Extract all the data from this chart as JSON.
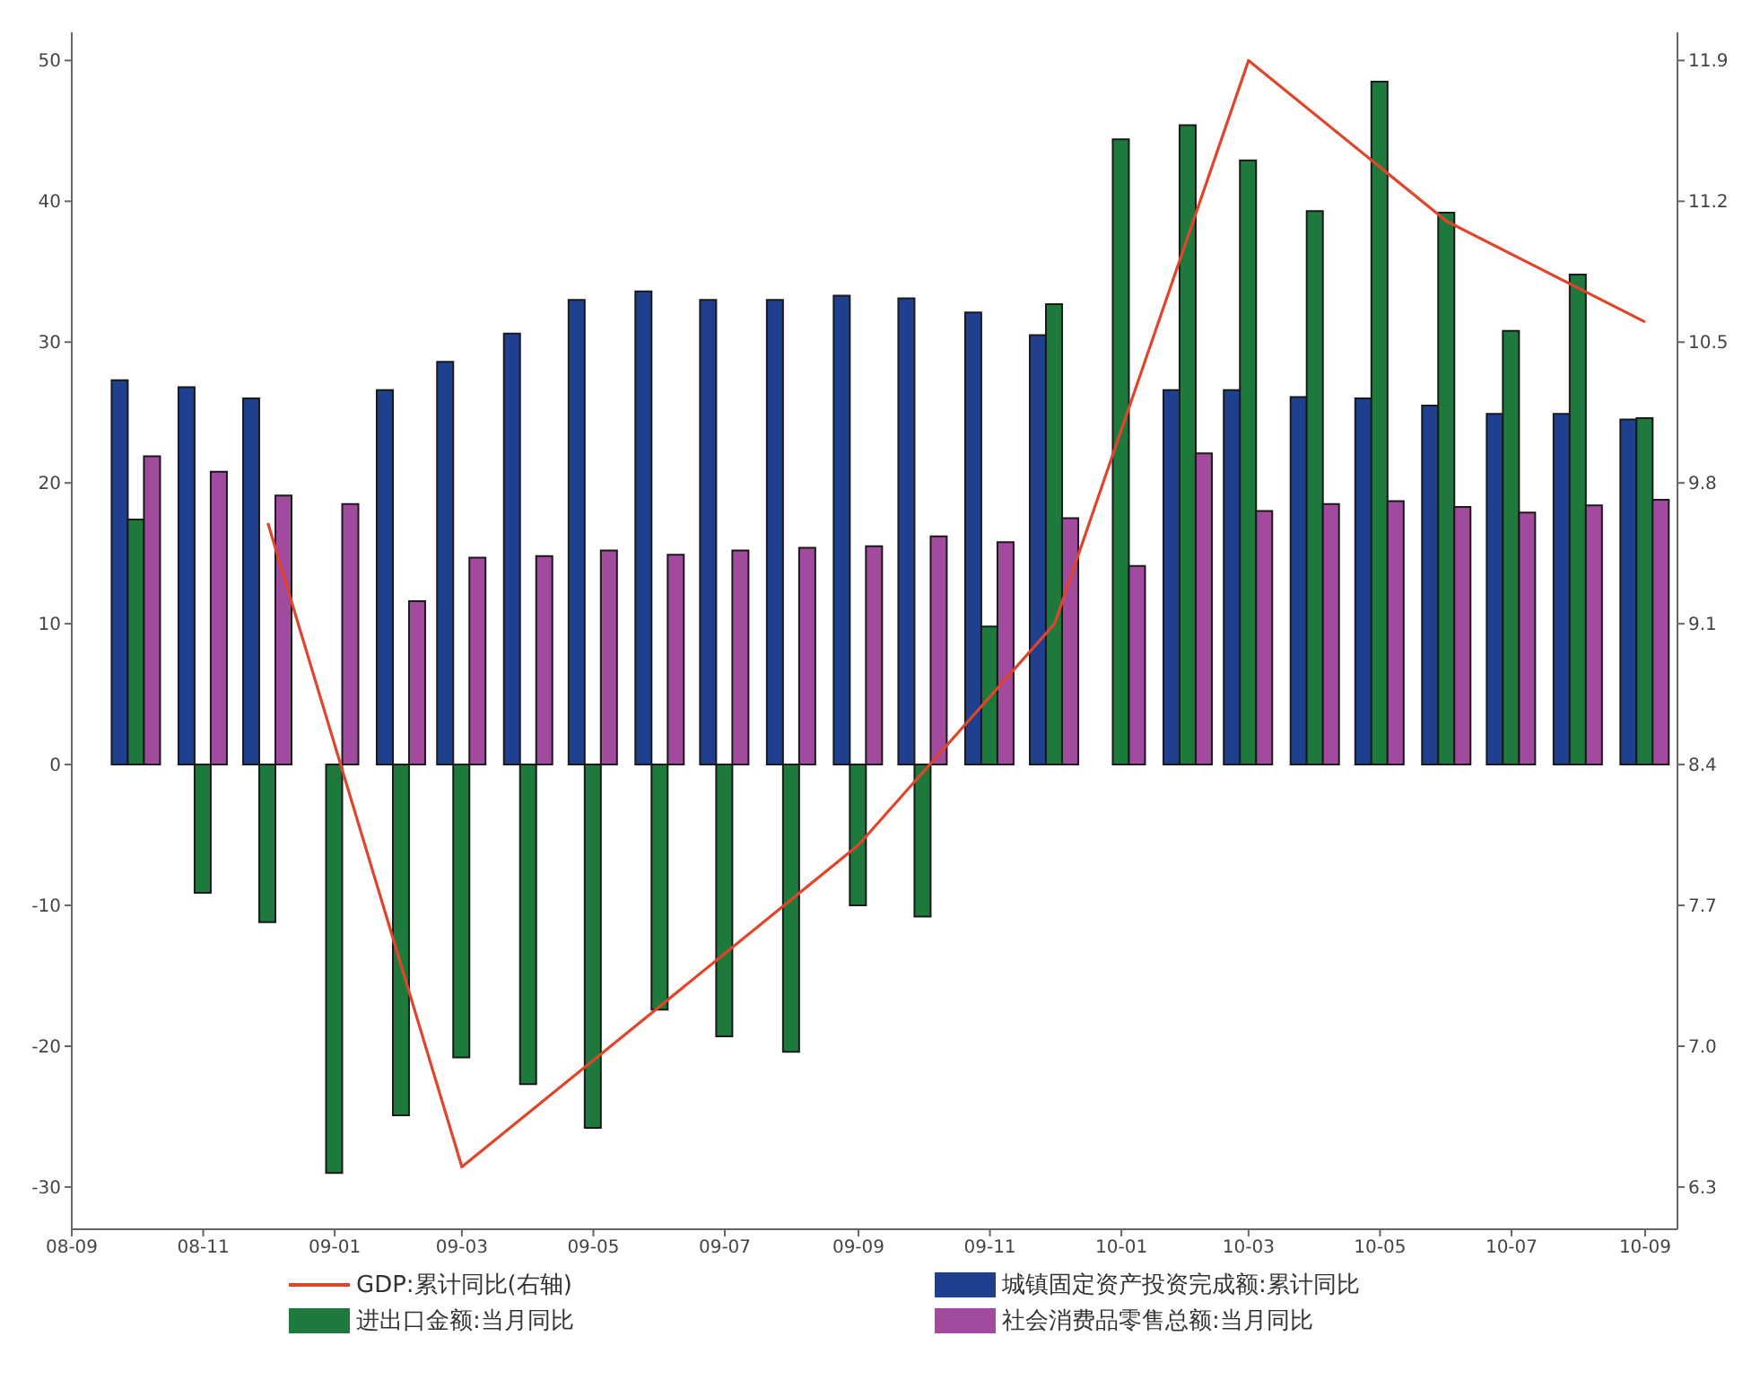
{
  "chart_data": {
    "type": "bar",
    "x": [
      "2008-10",
      "2008-11",
      "2008-12",
      "2009-01",
      "2009-02",
      "2009-03",
      "2009-04",
      "2009-05",
      "2009-06",
      "2009-07",
      "2009-08",
      "2009-09",
      "2009-10",
      "2009-11",
      "2009-12",
      "2010-01",
      "2010-02",
      "2010-03",
      "2010-04",
      "2010-05",
      "2010-06",
      "2010-07",
      "2010-08",
      "2010-09"
    ],
    "series": [
      {
        "name": "GDP:累计同比(右轴)",
        "type": "line",
        "axis": "y2",
        "color": "#e0452c",
        "x": [
          "2008-12",
          "2009-03",
          "2009-06",
          "2009-09",
          "2009-12",
          "2010-03",
          "2010-06",
          "2010-09"
        ],
        "values": [
          9.6,
          6.4,
          7.2,
          8.0,
          9.1,
          11.9,
          11.1,
          10.6
        ]
      },
      {
        "name": "城镇固定资产投资完成额:累计同比",
        "color": "#1f3f8f",
        "values": [
          27.3,
          26.8,
          26.0,
          null,
          26.6,
          28.6,
          30.6,
          33.0,
          33.6,
          33.0,
          33.0,
          33.3,
          33.1,
          32.1,
          30.5,
          null,
          26.6,
          26.6,
          26.1,
          26.0,
          25.5,
          24.9,
          24.9,
          24.5
        ]
      },
      {
        "name": "进出口金额:当月同比",
        "color": "#1e7a3c",
        "values": [
          17.4,
          -9.1,
          -11.2,
          -29.0,
          -24.9,
          -20.8,
          -22.7,
          -25.8,
          -17.4,
          -19.3,
          -20.4,
          -10.0,
          -10.8,
          9.8,
          32.7,
          44.4,
          45.4,
          42.9,
          39.3,
          48.5,
          39.2,
          30.8,
          34.8,
          24.6
        ]
      },
      {
        "name": "社会消费品零售总额:当月同比",
        "color": "#a24a9e",
        "values": [
          21.9,
          20.8,
          19.1,
          18.5,
          11.6,
          14.7,
          14.8,
          15.2,
          14.9,
          15.2,
          15.4,
          15.5,
          16.2,
          15.8,
          17.5,
          14.1,
          22.1,
          18.0,
          18.5,
          18.7,
          18.3,
          17.9,
          18.4,
          18.8
        ]
      }
    ],
    "xlim": [
      "2008-09",
      "2010-09-16"
    ],
    "xticks": [
      {
        "value": "2008-09",
        "label": "08-09"
      },
      {
        "value": "2008-11",
        "label": "08-11"
      },
      {
        "value": "2009-01",
        "label": "09-01"
      },
      {
        "value": "2009-03",
        "label": "09-03"
      },
      {
        "value": "2009-05",
        "label": "09-05"
      },
      {
        "value": "2009-07",
        "label": "09-07"
      },
      {
        "value": "2009-09",
        "label": "09-09"
      },
      {
        "value": "2009-11",
        "label": "09-11"
      },
      {
        "value": "2010-01",
        "label": "10-01"
      },
      {
        "value": "2010-03",
        "label": "10-03"
      },
      {
        "value": "2010-05",
        "label": "10-05"
      },
      {
        "value": "2010-07",
        "label": "10-07"
      },
      {
        "value": "2010-09",
        "label": "10-09"
      }
    ],
    "ylim": [
      -33,
      52
    ],
    "yticks": [
      -30,
      -20,
      -10,
      0,
      10,
      20,
      30,
      40,
      50
    ],
    "y2lim": [
      6.09,
      12.04
    ],
    "y2ticks": [
      6.3,
      {
        "value": 7,
        "label": "7.0"
      },
      7.7,
      8.4,
      9.1,
      9.8,
      10.5,
      11.2,
      11.9
    ],
    "legend": "bottom"
  }
}
